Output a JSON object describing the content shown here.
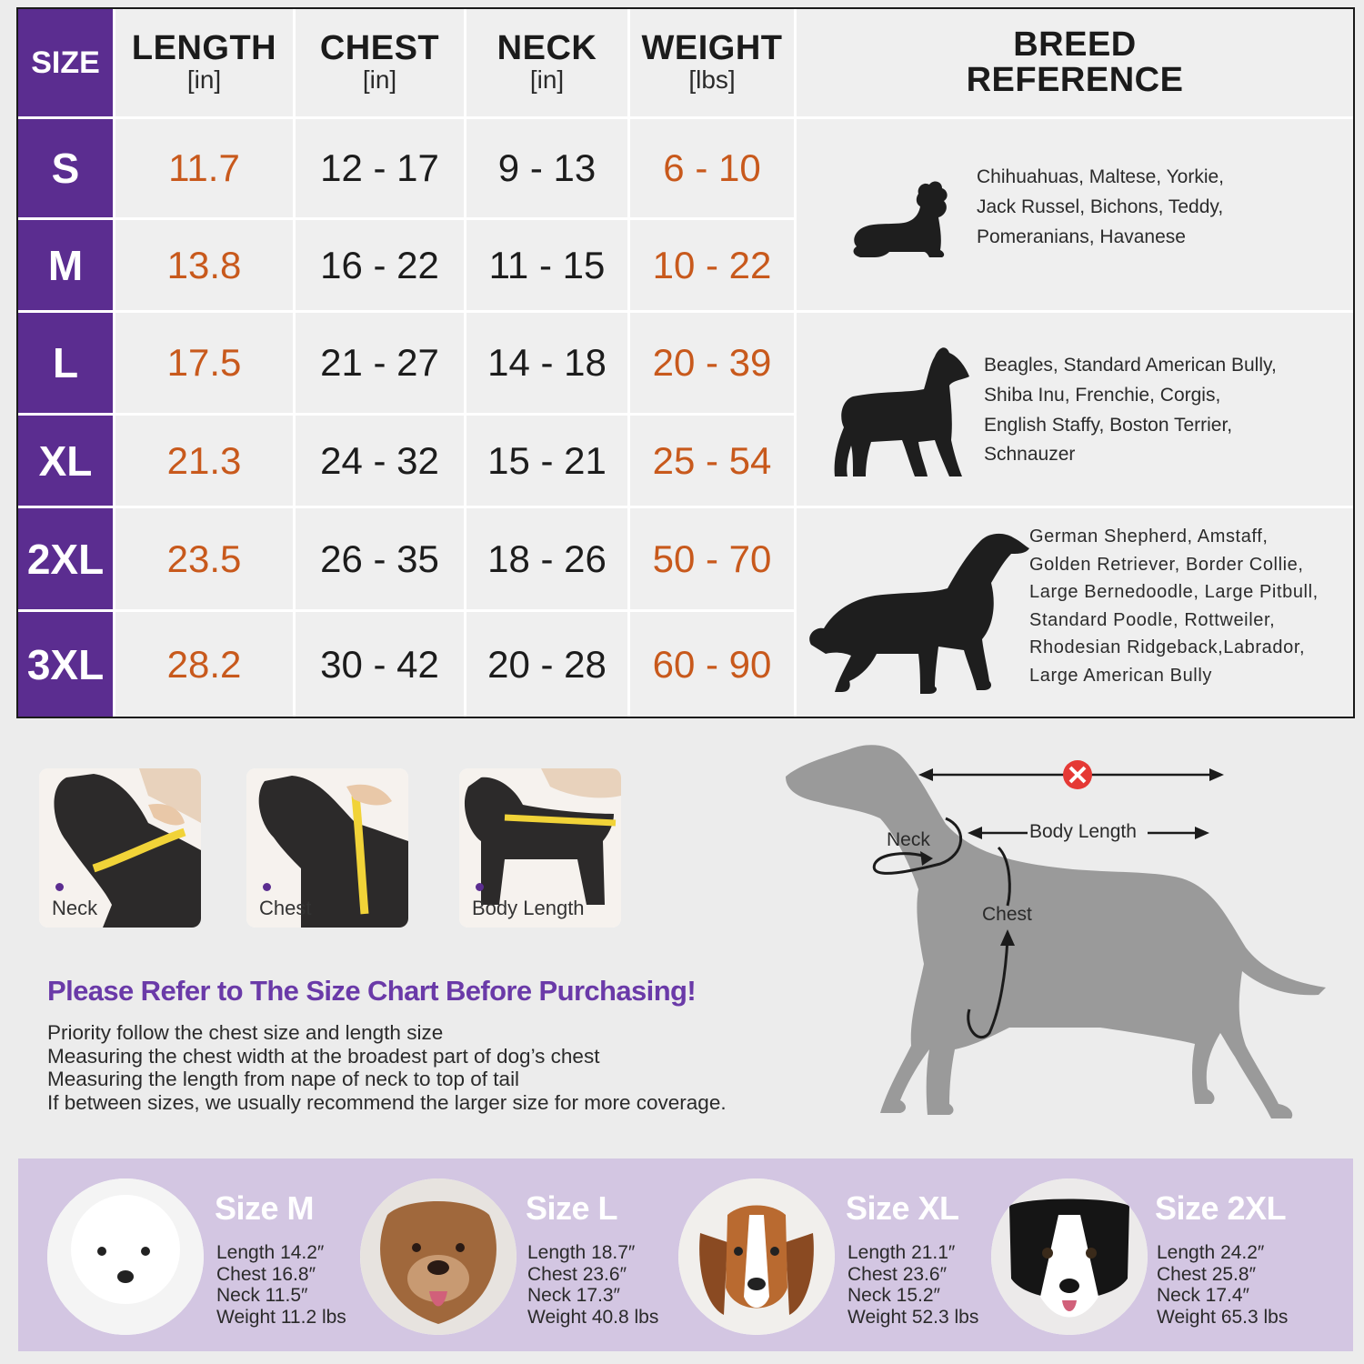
{
  "table": {
    "headers": {
      "size": "SIZE",
      "length": {
        "title": "LENGTH",
        "unit": "[in]"
      },
      "chest": {
        "title": "CHEST",
        "unit": "[in]"
      },
      "neck": {
        "title": "NECK",
        "unit": "[in]"
      },
      "weight": {
        "title": "WEIGHT",
        "unit": "[lbs]"
      },
      "breed": {
        "line1": "BREED",
        "line2": "REFERENCE"
      }
    },
    "rows": [
      {
        "size": "S",
        "length": "11.7",
        "chest": "12 - 17",
        "neck": "9 - 13",
        "weight": "6 - 10"
      },
      {
        "size": "M",
        "length": "13.8",
        "chest": "16 - 22",
        "neck": "11 - 15",
        "weight": "10 - 22"
      },
      {
        "size": "L",
        "length": "17.5",
        "chest": "21 - 27",
        "neck": "14 - 18",
        "weight": "20 - 39"
      },
      {
        "size": "XL",
        "length": "21.3",
        "chest": "24 - 32",
        "neck": "15 - 21",
        "weight": "25 - 54"
      },
      {
        "size": "2XL",
        "length": "23.5",
        "chest": "26 - 35",
        "neck": "18 - 26",
        "weight": "50 - 70"
      },
      {
        "size": "3XL",
        "length": "28.2",
        "chest": "30 - 42",
        "neck": "20 - 28",
        "weight": "60 - 90"
      }
    ],
    "breeds": [
      {
        "icon": "small-dog-icon",
        "lines": [
          "Chihuahuas, Maltese, Yorkie,",
          " Jack Russel, Bichons, Teddy,",
          "Pomeranians, Havanese"
        ]
      },
      {
        "icon": "medium-dog-icon",
        "lines": [
          "Beagles, Standard American Bully,",
          "Shiba Inu, Frenchie, Corgis,",
          "English Staffy, Boston Terrier,",
          "Schnauzer"
        ]
      },
      {
        "icon": "large-dog-icon",
        "lines": [
          "German Shepherd, Amstaff,",
          "Golden Retriever, Border Collie,",
          "Large Bernedoodle, Large Pitbull,",
          "Standard Poodle, Rottweiler,",
          "Rhodesian Ridgeback,Labrador,",
          "Large American Bully"
        ]
      }
    ]
  },
  "measure_photos": [
    {
      "label": "Neck",
      "icon": "mannequin-neck-measure-photo"
    },
    {
      "label": "Chest",
      "icon": "mannequin-chest-measure-photo"
    },
    {
      "label": "Body Length",
      "icon": "mannequin-length-measure-photo"
    }
  ],
  "notes": {
    "title": "Please Refer to The Size Chart Before Purchasing!",
    "lines": [
      "Priority follow the chest size and length size",
      "Measuring the chest width at the broadest part of dog’s chest",
      "Measuring the length from nape of neck to top of tail",
      "If between sizes, we usually recommend the larger size for more coverage."
    ]
  },
  "diagram": {
    "neck": "Neck",
    "body_length": "Body Length",
    "chest": "Chest",
    "wrong_icon": "x-circle-icon"
  },
  "examples": [
    {
      "title": "Size M",
      "length": "Length 14.2″",
      "chest": "Chest 16.8″",
      "neck": "Neck 11.5″",
      "weight": "Weight 11.2 lbs",
      "icon": "bichon-photo"
    },
    {
      "title": "Size L",
      "length": "Length 18.7″",
      "chest": "Chest 23.6″",
      "neck": "Neck 17.3″",
      "weight": "Weight 40.8 lbs",
      "icon": "pitbull-photo"
    },
    {
      "title": "Size XL",
      "length": "Length 21.1″",
      "chest": "Chest 23.6″",
      "neck": "Neck 15.2″",
      "weight": "Weight 52.3 lbs",
      "icon": "beagle-photo"
    },
    {
      "title": "Size 2XL",
      "length": "Length 24.2″",
      "chest": "Chest 25.8″",
      "neck": "Neck 17.4″",
      "weight": "Weight 65.3 lbs",
      "icon": "border-collie-photo"
    }
  ],
  "colors": {
    "purple": "#5b2d90",
    "orange": "#c8591c",
    "lavender": "#d3c6e2",
    "title_purple": "#6a3aa8"
  }
}
